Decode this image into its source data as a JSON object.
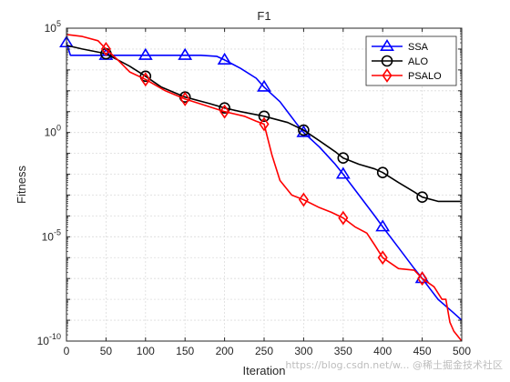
{
  "chart_data": {
    "type": "line",
    "title": "F1",
    "xlabel": "Iteration",
    "ylabel": "Fitness",
    "xlim": [
      0,
      500
    ],
    "ylim": [
      1e-10,
      100000
    ],
    "yscale": "log",
    "grid": true,
    "legend_position": "top-right",
    "x_ticks": [
      "0",
      "50",
      "100",
      "150",
      "200",
      "250",
      "300",
      "350",
      "400",
      "450",
      "500"
    ],
    "y_ticks": [
      {
        "base": "10",
        "exp": "-10"
      },
      {
        "base": "10",
        "exp": "-5"
      },
      {
        "base": "10",
        "exp": "0"
      },
      {
        "base": "10",
        "exp": "5"
      }
    ],
    "series": [
      {
        "name": "SSA",
        "color": "#0000ff",
        "marker": "triangle",
        "marker_x": [
          0,
          50,
          100,
          150,
          200,
          250,
          300,
          350,
          400,
          450
        ],
        "x": [
          0,
          5,
          50,
          100,
          150,
          170,
          190,
          200,
          220,
          240,
          250,
          270,
          290,
          300,
          320,
          340,
          350,
          370,
          390,
          400,
          420,
          440,
          450,
          470,
          490,
          500
        ],
        "y": [
          20000,
          5000,
          5000,
          5000,
          5000,
          5000,
          4500,
          3000,
          1200,
          400,
          150,
          30,
          3,
          1,
          0.2,
          0.03,
          0.01,
          0.001,
          0.0001,
          3e-05,
          3e-06,
          3e-07,
          1e-07,
          1e-08,
          2.2e-09,
          1e-09
        ]
      },
      {
        "name": "ALO",
        "color": "#000000",
        "marker": "circle",
        "marker_x": [
          50,
          100,
          150,
          200,
          250,
          300,
          350,
          400,
          450
        ],
        "x": [
          0,
          20,
          50,
          80,
          100,
          120,
          150,
          180,
          200,
          220,
          250,
          280,
          300,
          320,
          340,
          350,
          370,
          390,
          400,
          420,
          440,
          450,
          470,
          490,
          500
        ],
        "y": [
          15000,
          10000,
          6000,
          1500,
          500,
          150,
          50,
          25,
          15,
          10,
          6,
          3,
          1.3,
          0.4,
          0.12,
          0.06,
          0.03,
          0.018,
          0.012,
          0.004,
          0.0014,
          0.0008,
          0.0005,
          0.0005,
          0.0005
        ]
      },
      {
        "name": "PSALO",
        "color": "#ff0000",
        "marker": "diamond",
        "marker_x": [
          50,
          100,
          150,
          200,
          250,
          300,
          350,
          400,
          450
        ],
        "x": [
          0,
          20,
          40,
          50,
          65,
          80,
          100,
          125,
          150,
          175,
          200,
          225,
          240,
          250,
          260,
          270,
          285,
          300,
          320,
          335,
          350,
          365,
          380,
          390,
          400,
          420,
          440,
          450,
          465,
          475,
          480,
          485,
          490,
          500
        ],
        "y": [
          50000,
          40000,
          25000,
          10000,
          3000,
          800,
          350,
          100,
          40,
          20,
          10,
          6,
          3.5,
          2.5,
          0.08,
          0.005,
          0.001,
          0.0006,
          0.00025,
          0.00015,
          8e-05,
          3e-05,
          1.5e-05,
          4e-06,
          1e-06,
          3e-07,
          2.5e-07,
          1e-07,
          4e-08,
          1e-08,
          1e-08,
          8e-10,
          3e-10,
          1e-10
        ]
      }
    ]
  },
  "watermark_text": "https://blog.csdn.net/w...  @稀土掘金技术社区"
}
